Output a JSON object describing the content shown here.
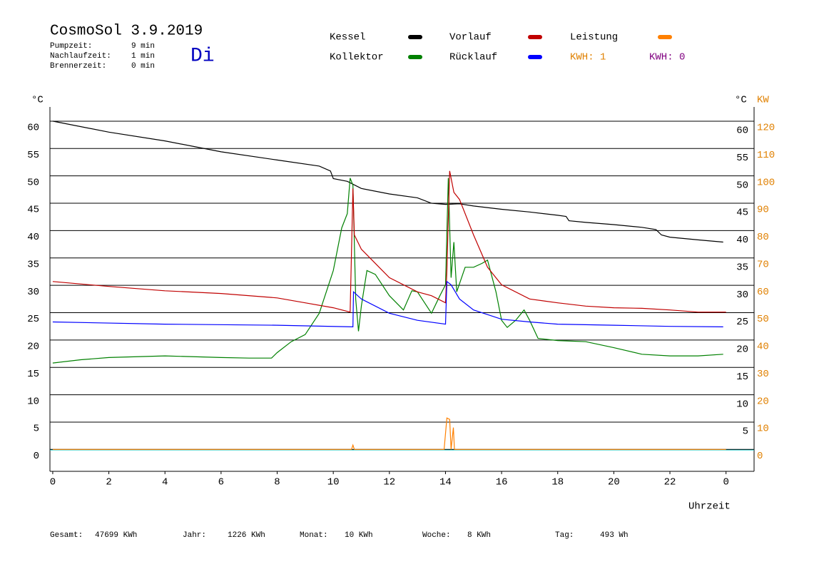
{
  "chart_data": {
    "type": "line",
    "title": "CosmoSol 3.9.2019",
    "day": "Di",
    "info": [
      [
        "Pumpzeit:",
        "9 min"
      ],
      [
        "Nachlaufzeit:",
        "1 min"
      ],
      [
        "Brennerzeit:",
        "0 min"
      ]
    ],
    "kwh_labels": [
      {
        "text": "KWH: 1",
        "color": "#e08000"
      },
      {
        "text": "KWH: 0",
        "color": "#800080"
      }
    ],
    "y_label": "°C",
    "y_right_label": "°C",
    "y2_label": "KW",
    "x_label": "Uhrzeit",
    "xlim": [
      -0.1,
      25
    ],
    "xticks": [
      0,
      2,
      4,
      6,
      8,
      10,
      12,
      14,
      16,
      18,
      20,
      22,
      {
        "value": 24,
        "label": "0"
      }
    ],
    "ylim": [
      -4,
      62.6
    ],
    "yticks": [
      0,
      5,
      10,
      15,
      20,
      25,
      30,
      35,
      40,
      45,
      50,
      55,
      60
    ],
    "y_right_ticks": [
      5,
      10,
      15,
      20,
      25,
      30,
      35,
      40,
      45,
      50,
      55,
      60
    ],
    "y2lim": [
      -8,
      125.2
    ],
    "y2ticks": [
      0,
      10,
      20,
      30,
      40,
      50,
      60,
      70,
      80,
      90,
      100,
      110,
      120
    ],
    "grid": true,
    "series": [
      {
        "name": "Kessel",
        "color": "#000000",
        "x": [
          0,
          2,
          4,
          6,
          8,
          9.5,
          9.9,
          10,
          10.5,
          11,
          12,
          13,
          13.5,
          14,
          14.5,
          15,
          16,
          17,
          18,
          18.3,
          18.4,
          19,
          20,
          21,
          21.5,
          21.7,
          22,
          23,
          23.9
        ],
        "values": [
          60.0,
          58.0,
          56.4,
          54.4,
          52.9,
          51.8,
          50.9,
          49.5,
          49.0,
          47.7,
          46.7,
          46.0,
          45.0,
          44.8,
          44.9,
          44.5,
          43.9,
          43.4,
          42.8,
          42.6,
          41.8,
          41.5,
          41.1,
          40.6,
          40.2,
          39.2,
          38.8,
          38.3,
          37.9
        ]
      },
      {
        "name": "Kollektor",
        "color": "#008000",
        "x": [
          0,
          1,
          2,
          4,
          6,
          7,
          7.8,
          8,
          8.5,
          9,
          9.5,
          10,
          10.3,
          10.5,
          10.6,
          10.7,
          10.8,
          10.9,
          11,
          11.2,
          11.5,
          12,
          12.5,
          12.8,
          13,
          13.5,
          13.8,
          14,
          14.1,
          14.2,
          14.3,
          14.4,
          14.7,
          15,
          15.3,
          15.5,
          15.8,
          16,
          16.2,
          16.5,
          16.8,
          17,
          17.3,
          18,
          19,
          20,
          21,
          22,
          23,
          23.9
        ],
        "values": [
          15.8,
          16.4,
          16.8,
          17.1,
          16.8,
          16.7,
          16.7,
          17.7,
          19.7,
          21.0,
          24.9,
          32.7,
          40.5,
          43.1,
          49.6,
          48.3,
          27.5,
          21.6,
          26.2,
          32.7,
          32.0,
          28.1,
          25.5,
          29.0,
          28.8,
          24.9,
          28.1,
          30.1,
          49.6,
          31.4,
          37.9,
          28.8,
          33.3,
          33.3,
          34.0,
          34.6,
          28.8,
          23.6,
          22.3,
          23.6,
          25.5,
          23.6,
          20.3,
          19.9,
          19.7,
          18.6,
          17.4,
          17.1,
          17.1,
          17.4
        ]
      },
      {
        "name": "Vorlauf",
        "color": "#c00000",
        "x": [
          0,
          2,
          4,
          6,
          8,
          9,
          10,
          10.6,
          10.7,
          10.75,
          11,
          12,
          13,
          13.5,
          14,
          14.05,
          14.15,
          14.3,
          14.5,
          15,
          15.5,
          16,
          17,
          18,
          19,
          20,
          21,
          22,
          23,
          24
        ],
        "values": [
          30.7,
          29.8,
          29.0,
          28.5,
          27.7,
          26.8,
          25.9,
          25.1,
          47.7,
          39.2,
          36.6,
          31.4,
          28.8,
          28.1,
          26.8,
          32.7,
          50.9,
          47.0,
          45.7,
          39.2,
          33.3,
          30.1,
          27.5,
          26.8,
          26.2,
          25.9,
          25.8,
          25.5,
          25.1,
          25.1
        ]
      },
      {
        "name": "Rücklauf",
        "color": "#0000ff",
        "x": [
          0,
          4,
          8,
          10.7,
          10.72,
          11,
          12,
          13,
          14,
          14.05,
          14.2,
          14.5,
          15,
          16,
          17,
          18,
          20,
          22,
          23.9
        ],
        "values": [
          23.3,
          22.9,
          22.7,
          22.4,
          28.8,
          27.5,
          24.9,
          23.6,
          22.9,
          30.7,
          30.1,
          27.5,
          25.5,
          23.8,
          23.3,
          22.9,
          22.7,
          22.5,
          22.4
        ]
      },
      {
        "name": "Leistung",
        "color": "#ff8000",
        "axis": "y2",
        "x": [
          0,
          10.65,
          10.7,
          10.75,
          13.95,
          14.05,
          14.15,
          14.2,
          14.28,
          14.32,
          24
        ],
        "values": [
          0,
          0,
          1.6,
          0,
          0,
          11.5,
          11,
          0,
          8,
          0,
          0
        ]
      }
    ],
    "totals": [
      [
        "Gesamt:",
        "47699 KWh"
      ],
      [
        "Jahr:",
        "1226 KWh"
      ],
      [
        "Monat:",
        "10 KWh"
      ],
      [
        "Woche:",
        "8 KWh"
      ],
      [
        "Tag:",
        "493 Wh"
      ]
    ]
  }
}
